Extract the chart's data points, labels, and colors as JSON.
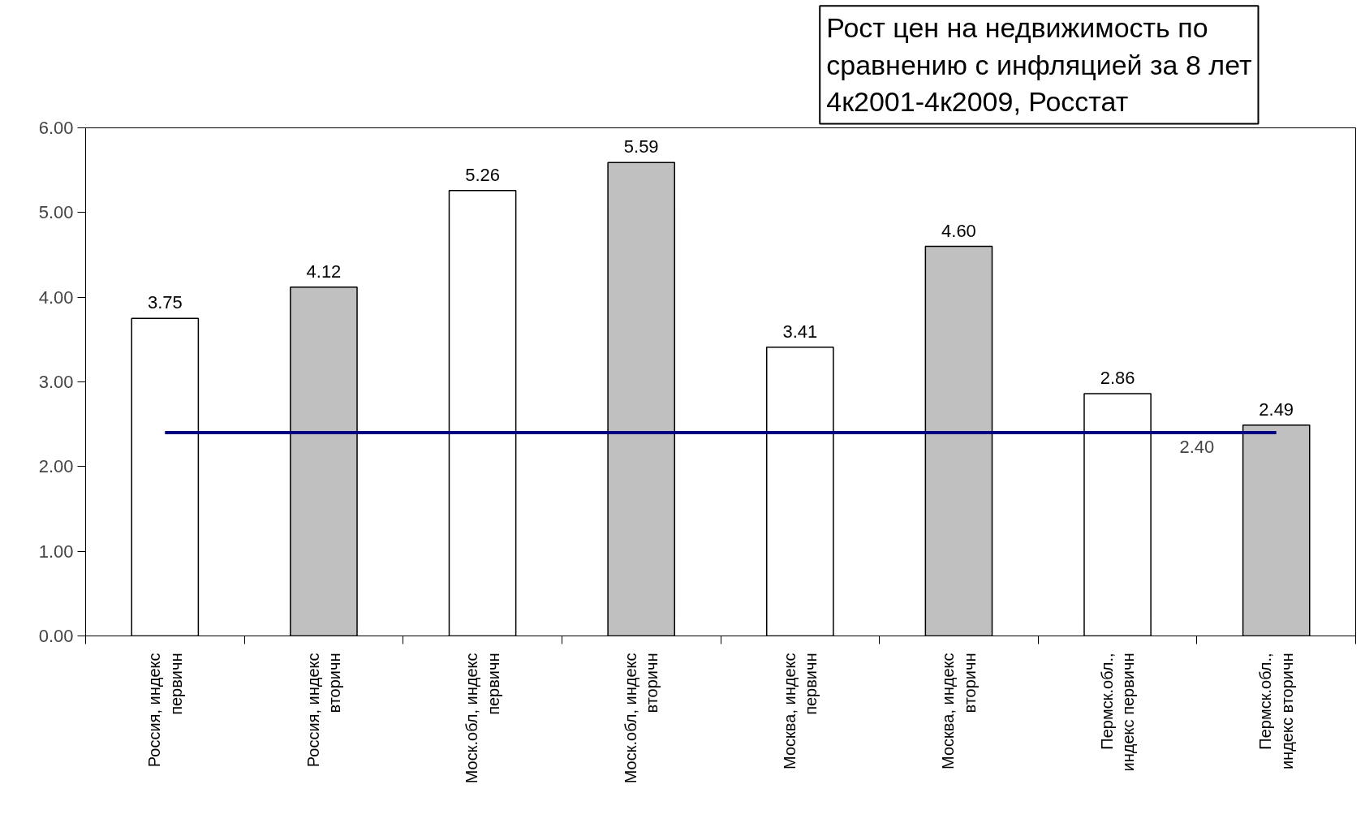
{
  "chart_data": {
    "type": "bar",
    "title": "Рост цен на недвижимость по\nсравнению с инфляцией за 8 лет\n4к2001-4к2009, Росстат",
    "categories": [
      "Россия, индекс\nпервичн",
      "Россия, индекс\nвторичн",
      "Моск.обл, индекс\nпервичн",
      "Моск.обл, индекс\nвторичн",
      "Москва, индекс\nпервичн",
      "Москва, индекс\nвторичн",
      "Пермск.обл.,\nиндекс первичн",
      "Пермск.обл.,\nиндекс вторичн"
    ],
    "values": [
      3.75,
      4.12,
      5.26,
      5.59,
      3.41,
      4.6,
      2.86,
      2.49
    ],
    "colors": [
      "#ffffff",
      "#c0c0c0",
      "#ffffff",
      "#c0c0c0",
      "#ffffff",
      "#c0c0c0",
      "#ffffff",
      "#c0c0c0"
    ],
    "ylim": [
      0,
      6
    ],
    "yticks": [
      {
        "value": 0,
        "label": "0.00"
      },
      {
        "value": 1,
        "label": "1.00"
      },
      {
        "value": 2,
        "label": "2.00"
      },
      {
        "value": 3,
        "label": "3.00"
      },
      {
        "value": 4,
        "label": "4.00"
      },
      {
        "value": 5,
        "label": "5.00"
      },
      {
        "value": 6,
        "label": "6.00"
      }
    ],
    "ref_lines": [
      {
        "axis": "y",
        "value": 2.4,
        "label": "2.40",
        "color": "#000080"
      }
    ],
    "value_labels": [
      "3.75",
      "4.12",
      "5.26",
      "5.59",
      "3.41",
      "4.60",
      "2.86",
      "2.49"
    ],
    "grid": false
  }
}
